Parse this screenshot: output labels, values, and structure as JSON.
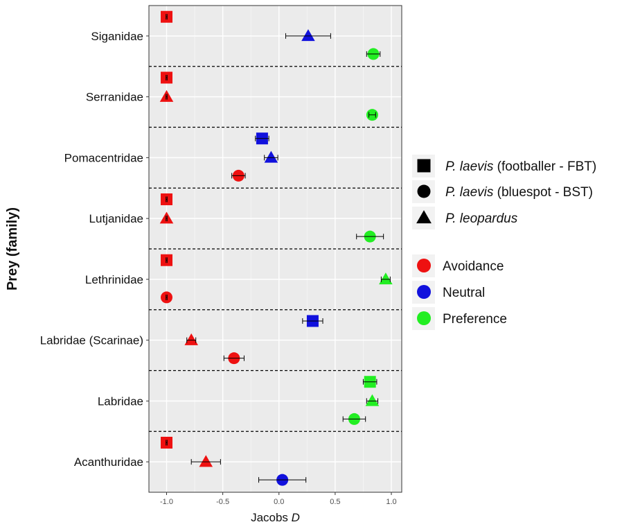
{
  "chart_data": {
    "type": "scatter",
    "xlabel": "Jacobs",
    "xlabel_italic": "D",
    "ylabel": "Prey (family)",
    "xlim": [
      -1.15,
      1.1
    ],
    "xticks": [
      -1.0,
      -0.5,
      0.0,
      0.5,
      1.0
    ],
    "xtick_labels": [
      "-1.0",
      "-0.5",
      "0.0",
      "0.5",
      "1.0"
    ],
    "grid": true,
    "legend_position": "right",
    "categories": [
      "Siganidae",
      "Serranidae",
      "Pomacentridae",
      "Lutjanidae",
      "Lethrinidae",
      "Labridae (Scarinae)",
      "Labridae",
      "Acanthuridae"
    ],
    "colors": {
      "Avoidance": "#ee1111",
      "Neutral": "#1111dd",
      "Preference": "#22ee22"
    },
    "shape_legend": [
      {
        "shape": "square",
        "species": "P. laevis",
        "detail": " (footballer - FBT)"
      },
      {
        "shape": "circle",
        "species": "P. laevis",
        "detail": " (bluespot - BST)"
      },
      {
        "shape": "triangle",
        "species": "P. leopardus",
        "detail": ""
      }
    ],
    "color_legend": [
      {
        "label": "Avoidance",
        "color": "#ee1111"
      },
      {
        "label": "Neutral",
        "color": "#1111dd"
      },
      {
        "label": "Preference",
        "color": "#22ee22"
      }
    ],
    "points": [
      {
        "family": "Siganidae",
        "shape": "square",
        "x": -1.0,
        "err": 0.0,
        "class": "Avoidance"
      },
      {
        "family": "Siganidae",
        "shape": "triangle",
        "x": 0.26,
        "err": 0.2,
        "class": "Neutral"
      },
      {
        "family": "Siganidae",
        "shape": "circle",
        "x": 0.84,
        "err": 0.06,
        "class": "Preference"
      },
      {
        "family": "Serranidae",
        "shape": "square",
        "x": -1.0,
        "err": 0.0,
        "class": "Avoidance"
      },
      {
        "family": "Serranidae",
        "shape": "triangle",
        "x": -1.0,
        "err": 0.0,
        "class": "Avoidance"
      },
      {
        "family": "Serranidae",
        "shape": "circle",
        "x": 0.83,
        "err": 0.03,
        "class": "Preference"
      },
      {
        "family": "Pomacentridae",
        "shape": "square",
        "x": -0.15,
        "err": 0.06,
        "class": "Neutral"
      },
      {
        "family": "Pomacentridae",
        "shape": "triangle",
        "x": -0.07,
        "err": 0.06,
        "class": "Neutral"
      },
      {
        "family": "Pomacentridae",
        "shape": "circle",
        "x": -0.36,
        "err": 0.06,
        "class": "Avoidance"
      },
      {
        "family": "Lutjanidae",
        "shape": "square",
        "x": -1.0,
        "err": 0.0,
        "class": "Avoidance"
      },
      {
        "family": "Lutjanidae",
        "shape": "triangle",
        "x": -1.0,
        "err": 0.0,
        "class": "Avoidance"
      },
      {
        "family": "Lutjanidae",
        "shape": "circle",
        "x": 0.81,
        "err": 0.12,
        "class": "Preference"
      },
      {
        "family": "Lethrinidae",
        "shape": "square",
        "x": -1.0,
        "err": 0.0,
        "class": "Avoidance"
      },
      {
        "family": "Lethrinidae",
        "shape": "triangle",
        "x": 0.95,
        "err": 0.04,
        "class": "Preference"
      },
      {
        "family": "Lethrinidae",
        "shape": "circle",
        "x": -1.0,
        "err": 0.0,
        "class": "Avoidance"
      },
      {
        "family": "Labridae (Scarinae)",
        "shape": "square",
        "x": 0.3,
        "err": 0.09,
        "class": "Neutral"
      },
      {
        "family": "Labridae (Scarinae)",
        "shape": "triangle",
        "x": -0.78,
        "err": 0.04,
        "class": "Avoidance"
      },
      {
        "family": "Labridae (Scarinae)",
        "shape": "circle",
        "x": -0.4,
        "err": 0.09,
        "class": "Avoidance"
      },
      {
        "family": "Labridae",
        "shape": "square",
        "x": 0.81,
        "err": 0.06,
        "class": "Preference"
      },
      {
        "family": "Labridae",
        "shape": "triangle",
        "x": 0.83,
        "err": 0.05,
        "class": "Preference"
      },
      {
        "family": "Labridae",
        "shape": "circle",
        "x": 0.67,
        "err": 0.1,
        "class": "Preference"
      },
      {
        "family": "Acanthuridae",
        "shape": "square",
        "x": -1.0,
        "err": 0.0,
        "class": "Avoidance"
      },
      {
        "family": "Acanthuridae",
        "shape": "triangle",
        "x": -0.65,
        "err": 0.13,
        "class": "Avoidance"
      },
      {
        "family": "Acanthuridae",
        "shape": "circle",
        "x": 0.03,
        "err": 0.21,
        "class": "Neutral"
      }
    ]
  }
}
